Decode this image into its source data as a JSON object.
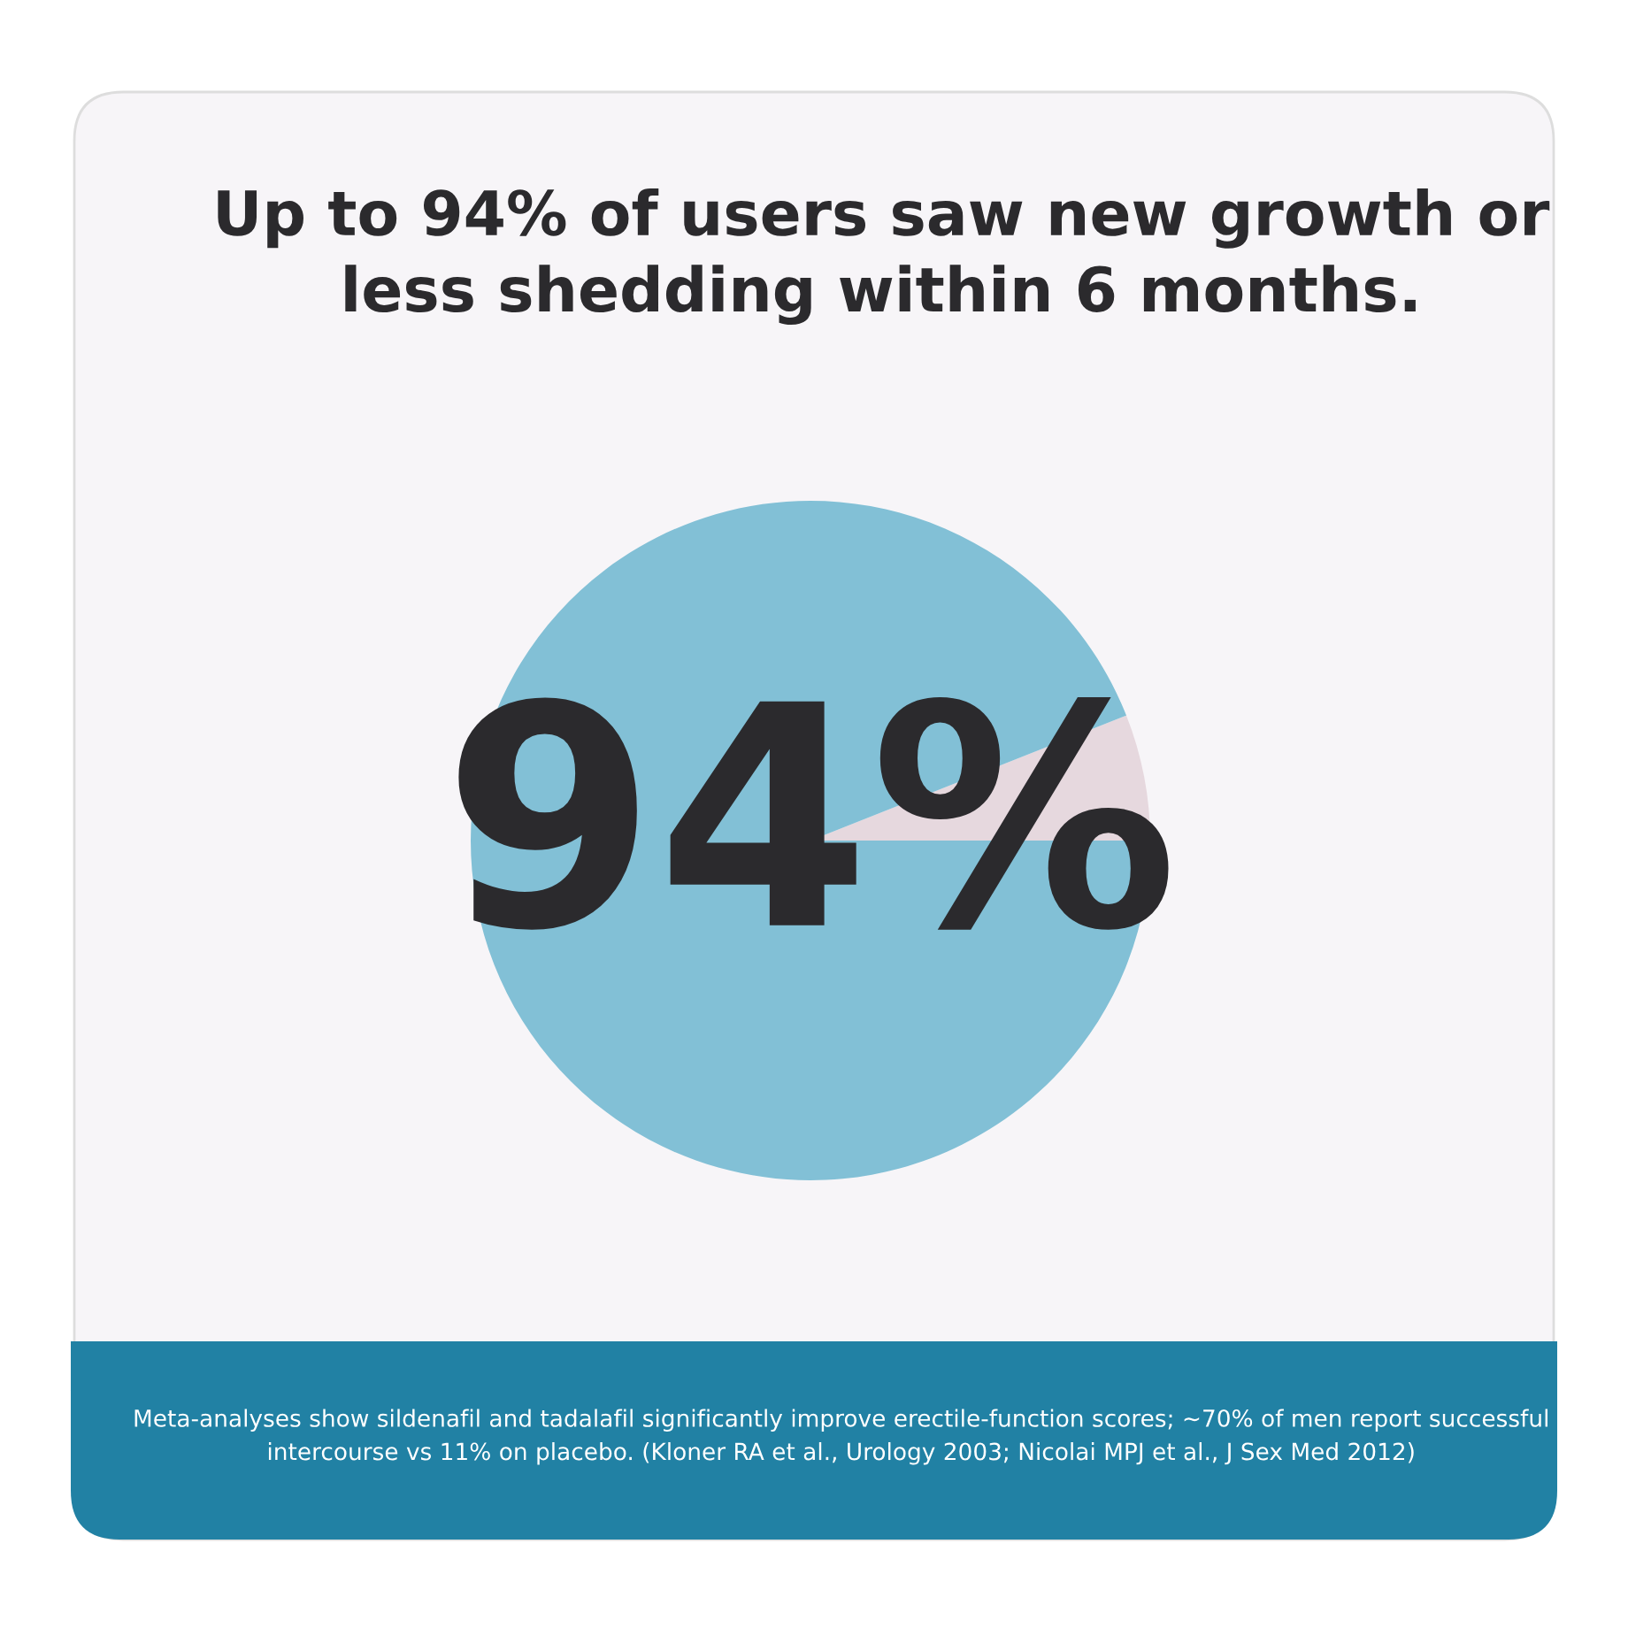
{
  "chart_data": {
    "type": "pie",
    "title": "Up to 94% of users saw new growth or less shedding within 6 months.",
    "categories": [
      null,
      null
    ],
    "values": [
      6,
      94
    ],
    "colors": [
      "#e6d8de",
      "#82c0d6"
    ],
    "value_labels": [
      null,
      "94%"
    ],
    "annotations": [
      "Meta-analyses show sildenafil and tadalafil significantly improve erectile-function scores; ~70% of men report successful intercourse vs 11% on placebo. (Kloner RA et al., Urology 2003; Nicolai MPJ et al., J Sex Med 2012)"
    ]
  }
}
